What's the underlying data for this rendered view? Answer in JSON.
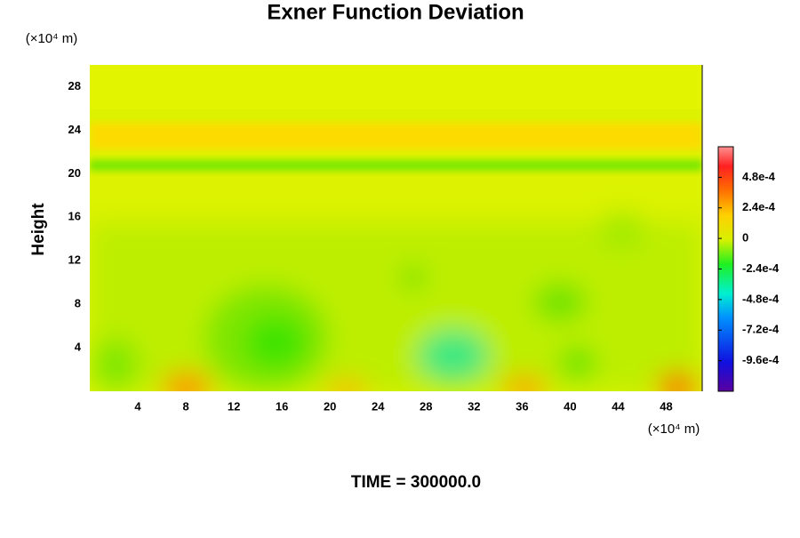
{
  "chart_data": {
    "type": "contour",
    "title": "Exner Function Deviation",
    "ylabel": "Height",
    "x_unit": "(×10⁴ m)",
    "y_unit": "(×10⁴ m)",
    "annotation": "TIME = 300000.0",
    "xlim": [
      0,
      51
    ],
    "xticks": [
      4,
      8,
      12,
      16,
      20,
      24,
      28,
      32,
      36,
      40,
      44,
      48
    ],
    "ylim": [
      0,
      30
    ],
    "yticks": [
      4,
      8,
      12,
      16,
      20,
      24,
      28
    ],
    "clim": [
      -0.0012,
      0.00072
    ],
    "cticks": [
      {
        "value": 0.00048,
        "label": "4.8e-4"
      },
      {
        "value": 0.00024,
        "label": "2.4e-4"
      },
      0,
      {
        "value": -0.00024,
        "label": "-2.4e-4"
      },
      {
        "value": -0.00048,
        "label": "-4.8e-4"
      },
      {
        "value": -0.00072,
        "label": "-7.2e-4"
      },
      {
        "value": -0.00096,
        "label": "-9.6e-4"
      }
    ]
  }
}
